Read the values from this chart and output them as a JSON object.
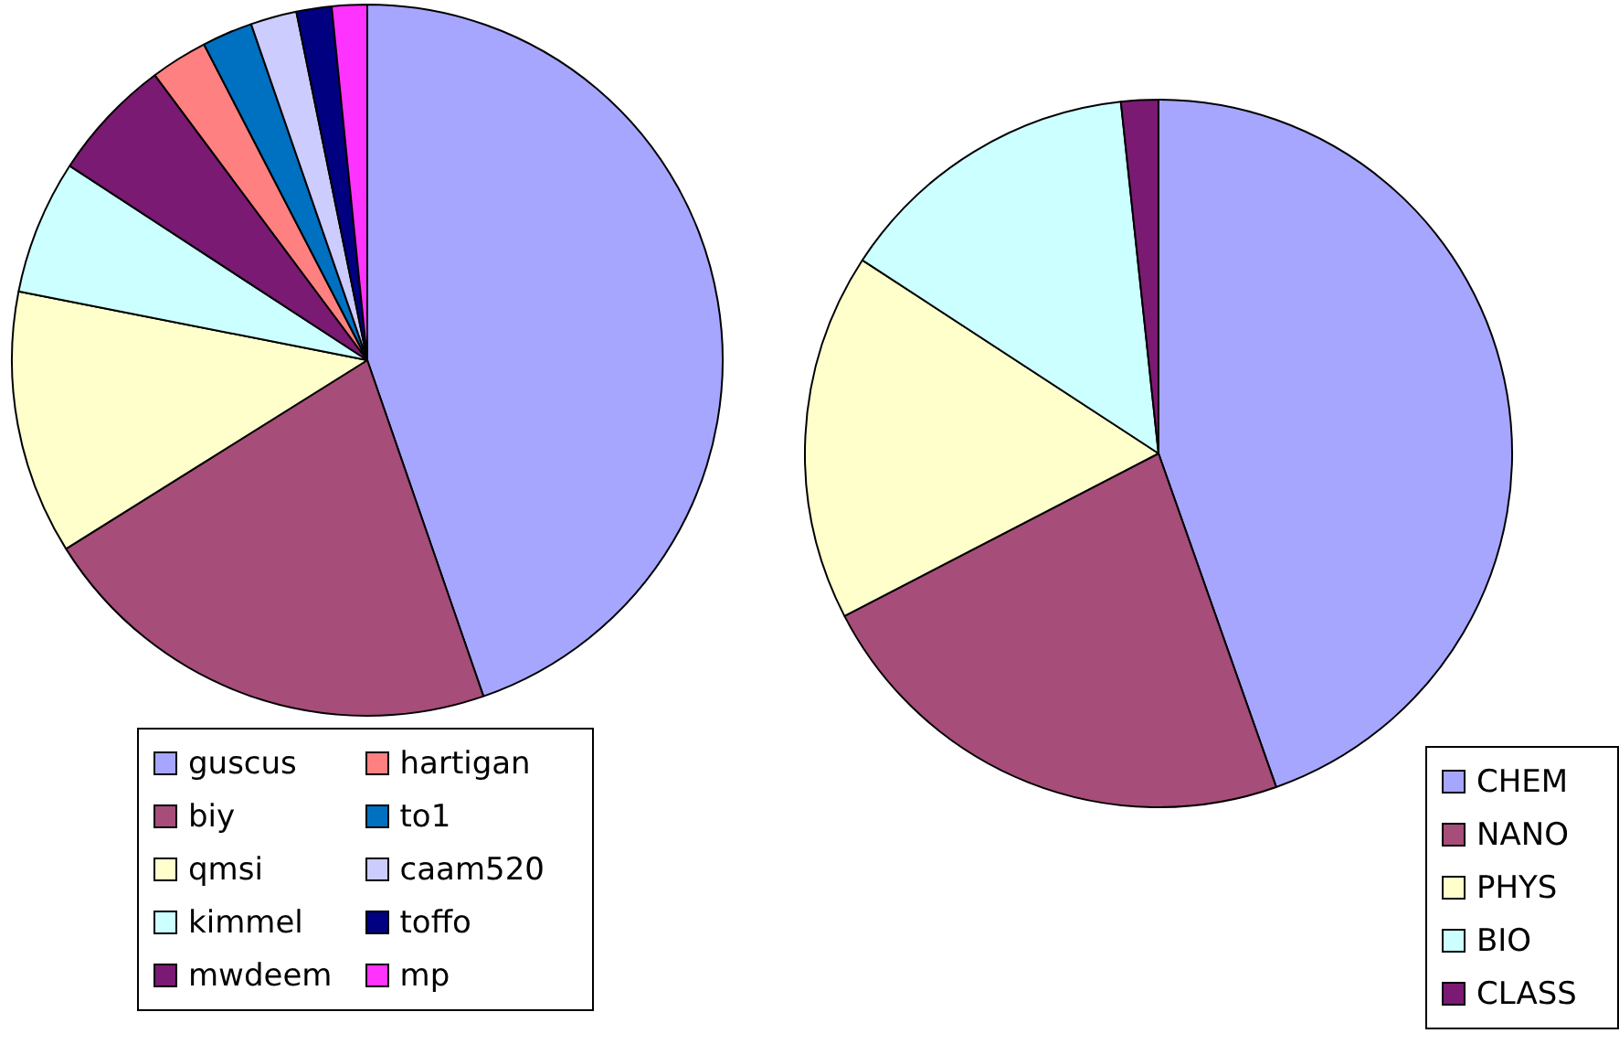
{
  "chart_data": [
    {
      "type": "pie",
      "categories": [
        "guscus",
        "biy",
        "qmsi",
        "kimmel",
        "mwdeem",
        "hartigan",
        "to1",
        "caam520",
        "toffo",
        "mp"
      ],
      "values": [
        44.7,
        21.4,
        12.0,
        6.1,
        5.6,
        2.6,
        2.3,
        2.1,
        1.6,
        1.6
      ],
      "colors": [
        "#a6a6ff",
        "#a64d79",
        "#ffffcc",
        "#ccffff",
        "#7a1a72",
        "#ff8080",
        "#0070c0",
        "#ccccff",
        "#000080",
        "#ff33ff"
      ],
      "legend": "bottom"
    },
    {
      "type": "pie",
      "categories": [
        "CHEM",
        "NANO",
        "PHYS",
        "BIO",
        "CLASS"
      ],
      "values": [
        44.6,
        22.8,
        16.8,
        14.1,
        1.7
      ],
      "colors": [
        "#a6a6ff",
        "#a64d79",
        "#ffffcc",
        "#ccffff",
        "#7a1a72"
      ],
      "legend": "bottom right"
    }
  ]
}
